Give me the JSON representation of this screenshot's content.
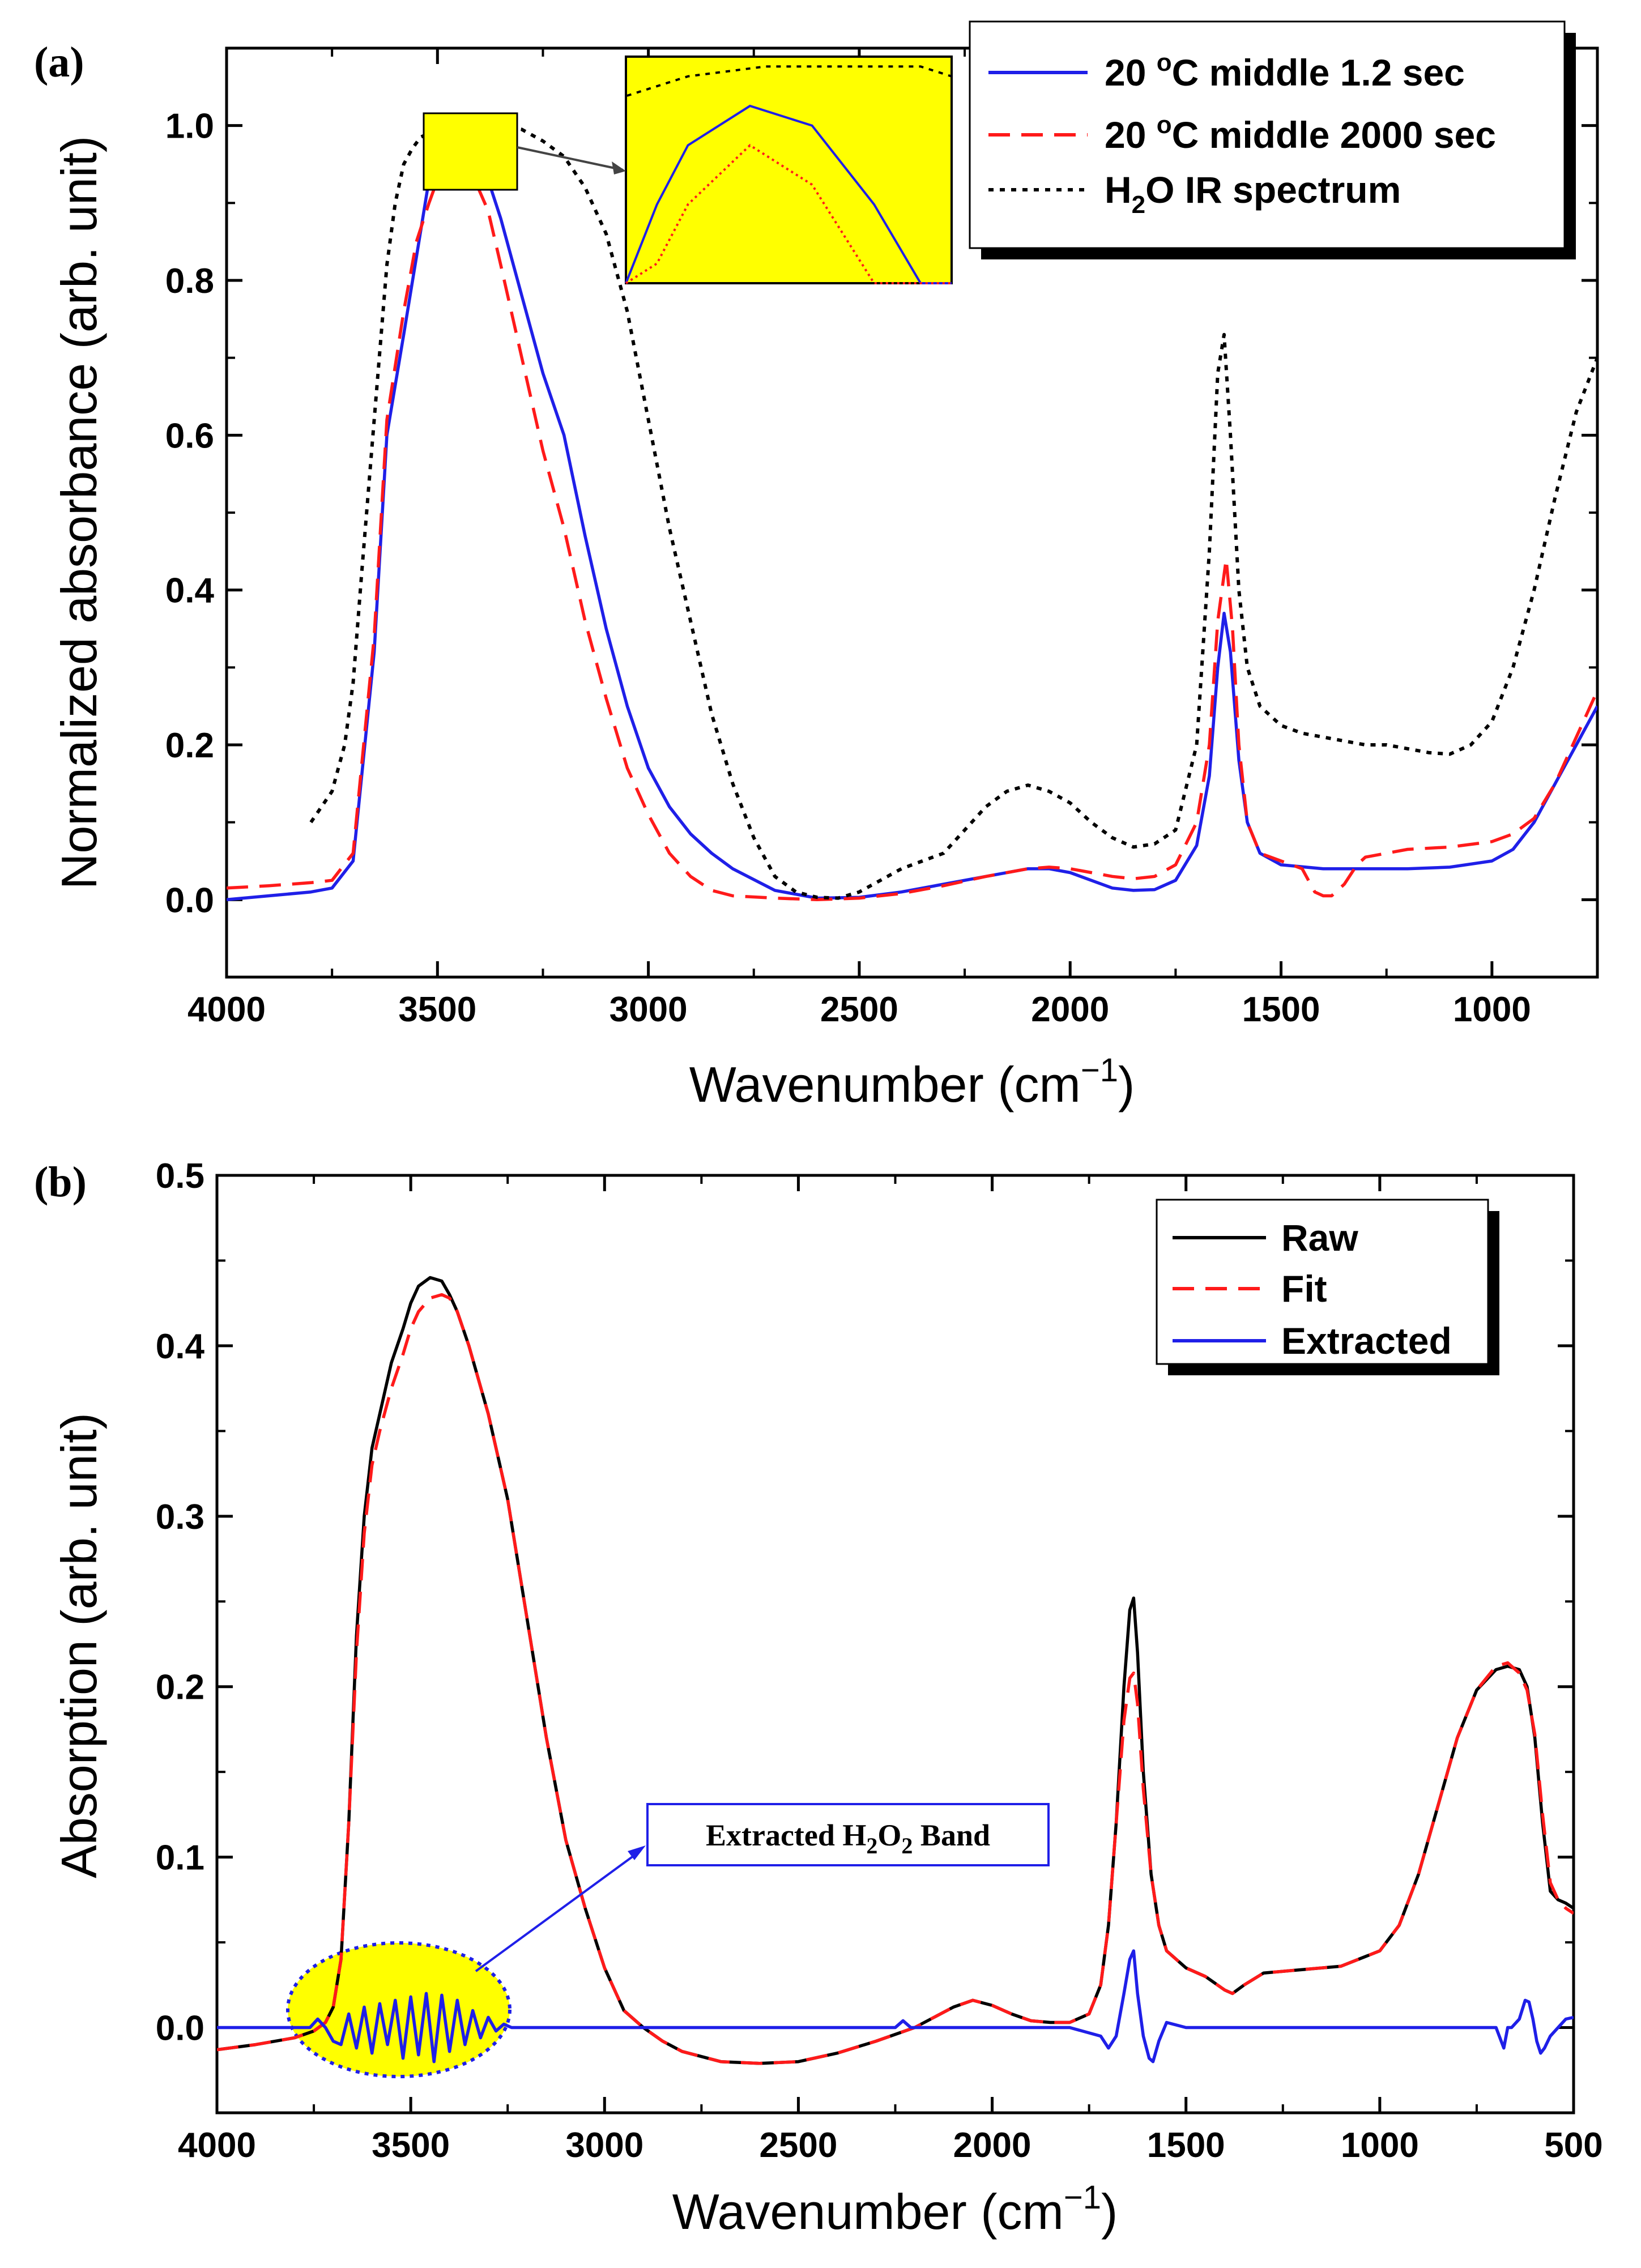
{
  "chart_data": [
    {
      "id": "a",
      "type": "line",
      "panel_label": "(a)",
      "xlabel": "Wavenumber (cm",
      "xlabel_sup": "−1",
      "xlabel_close": ")",
      "ylabel": "Normalized absorbance (arb. unit)",
      "xlim": [
        4000,
        750
      ],
      "ylim": [
        -0.1,
        1.1
      ],
      "xticks": [
        4000,
        3500,
        3000,
        2500,
        2000,
        1500,
        1000
      ],
      "yticks": [
        0.0,
        0.2,
        0.4,
        0.6,
        0.8,
        1.0
      ],
      "legend_position": "top-right",
      "legend": [
        {
          "pre": "20 ",
          "sup": "o",
          "post": "C middle 1.2 sec"
        },
        {
          "pre": "20 ",
          "sup": "o",
          "post": "C middle 2000 sec"
        },
        {
          "pre": "H",
          "sub": "2",
          "post": "O IR spectrum"
        }
      ],
      "inset": {
        "x_range": [
          3540,
          3330
        ],
        "y_range": [
          0.91,
          1.0
        ],
        "note": "magnified view of boxed peak region"
      },
      "series": [
        {
          "name": "20 °C middle 1.2 sec",
          "color": "#1f1fe8",
          "dash": "solid",
          "x": [
            4000,
            3900,
            3800,
            3750,
            3700,
            3650,
            3620,
            3580,
            3550,
            3520,
            3500,
            3460,
            3420,
            3380,
            3350,
            3300,
            3250,
            3200,
            3150,
            3100,
            3050,
            3000,
            2950,
            2900,
            2850,
            2800,
            2700,
            2600,
            2500,
            2400,
            2300,
            2200,
            2100,
            2050,
            2000,
            1950,
            1900,
            1850,
            1800,
            1750,
            1700,
            1670,
            1650,
            1635,
            1620,
            1600,
            1580,
            1550,
            1500,
            1400,
            1300,
            1200,
            1100,
            1000,
            950,
            900,
            850,
            800,
            750
          ],
          "y": [
            0.0,
            0.005,
            0.01,
            0.015,
            0.05,
            0.32,
            0.6,
            0.73,
            0.83,
            0.93,
            0.96,
            0.98,
            0.97,
            0.93,
            0.88,
            0.78,
            0.68,
            0.6,
            0.47,
            0.35,
            0.25,
            0.17,
            0.12,
            0.085,
            0.06,
            0.04,
            0.012,
            0.002,
            0.003,
            0.01,
            0.02,
            0.03,
            0.04,
            0.04,
            0.035,
            0.025,
            0.015,
            0.012,
            0.013,
            0.025,
            0.07,
            0.16,
            0.3,
            0.37,
            0.32,
            0.18,
            0.1,
            0.06,
            0.045,
            0.04,
            0.04,
            0.04,
            0.042,
            0.05,
            0.065,
            0.1,
            0.15,
            0.2,
            0.25
          ]
        },
        {
          "name": "20 °C middle 2000 sec",
          "color": "#ff1a1a",
          "dash": "long",
          "x": [
            4000,
            3900,
            3800,
            3750,
            3700,
            3650,
            3620,
            3580,
            3550,
            3520,
            3500,
            3460,
            3420,
            3380,
            3350,
            3300,
            3250,
            3200,
            3150,
            3100,
            3050,
            3000,
            2950,
            2900,
            2850,
            2800,
            2700,
            2600,
            2500,
            2400,
            2300,
            2200,
            2100,
            2050,
            2000,
            1950,
            1900,
            1850,
            1800,
            1750,
            1700,
            1670,
            1650,
            1630,
            1615,
            1600,
            1580,
            1550,
            1500,
            1450,
            1420,
            1400,
            1380,
            1350,
            1320,
            1300,
            1200,
            1100,
            1000,
            950,
            900,
            850,
            800,
            750
          ],
          "y": [
            0.015,
            0.018,
            0.022,
            0.025,
            0.06,
            0.34,
            0.62,
            0.76,
            0.85,
            0.9,
            0.93,
            0.96,
            0.94,
            0.89,
            0.82,
            0.7,
            0.58,
            0.48,
            0.36,
            0.26,
            0.17,
            0.11,
            0.06,
            0.03,
            0.012,
            0.005,
            0.002,
            0.0,
            0.002,
            0.008,
            0.018,
            0.03,
            0.04,
            0.042,
            0.04,
            0.035,
            0.03,
            0.027,
            0.03,
            0.045,
            0.1,
            0.2,
            0.36,
            0.44,
            0.35,
            0.2,
            0.1,
            0.06,
            0.05,
            0.04,
            0.01,
            0.005,
            0.005,
            0.02,
            0.045,
            0.055,
            0.065,
            0.068,
            0.075,
            0.085,
            0.105,
            0.15,
            0.21,
            0.27
          ]
        },
        {
          "name": "H2O IR spectrum",
          "color": "#000000",
          "dash": "dot",
          "x": [
            3800,
            3750,
            3720,
            3700,
            3680,
            3650,
            3620,
            3600,
            3580,
            3560,
            3540,
            3500,
            3450,
            3400,
            3350,
            3300,
            3250,
            3200,
            3150,
            3100,
            3050,
            3000,
            2950,
            2900,
            2850,
            2800,
            2750,
            2700,
            2650,
            2600,
            2550,
            2500,
            2450,
            2400,
            2350,
            2300,
            2250,
            2200,
            2150,
            2100,
            2050,
            2000,
            1950,
            1900,
            1850,
            1800,
            1750,
            1700,
            1670,
            1650,
            1635,
            1620,
            1600,
            1580,
            1550,
            1500,
            1450,
            1400,
            1350,
            1300,
            1250,
            1200,
            1150,
            1100,
            1050,
            1000,
            950,
            900,
            850,
            800,
            750
          ],
          "y": [
            0.1,
            0.14,
            0.2,
            0.28,
            0.42,
            0.62,
            0.82,
            0.9,
            0.95,
            0.97,
            0.985,
            0.995,
            1.0,
            1.0,
            1.0,
            0.995,
            0.98,
            0.96,
            0.92,
            0.86,
            0.76,
            0.62,
            0.48,
            0.36,
            0.24,
            0.15,
            0.08,
            0.03,
            0.01,
            0.003,
            0.002,
            0.01,
            0.025,
            0.04,
            0.05,
            0.06,
            0.09,
            0.12,
            0.14,
            0.148,
            0.14,
            0.125,
            0.1,
            0.08,
            0.068,
            0.072,
            0.09,
            0.2,
            0.45,
            0.68,
            0.73,
            0.6,
            0.4,
            0.3,
            0.25,
            0.225,
            0.215,
            0.21,
            0.205,
            0.2,
            0.2,
            0.195,
            0.19,
            0.188,
            0.2,
            0.23,
            0.3,
            0.4,
            0.52,
            0.63,
            0.7
          ]
        }
      ]
    },
    {
      "id": "b",
      "type": "line",
      "panel_label": "(b)",
      "xlabel": "Wavenumber (cm",
      "xlabel_sup": "−1",
      "xlabel_close": ")",
      "ylabel": "Absorption (arb. unit)",
      "xlim": [
        4000,
        500
      ],
      "ylim": [
        -0.05,
        0.5
      ],
      "xticks": [
        4000,
        3500,
        3000,
        2500,
        2000,
        1500,
        1000,
        500
      ],
      "yticks": [
        0.0,
        0.1,
        0.2,
        0.3,
        0.4,
        0.5
      ],
      "legend_position": "top-right",
      "legend": [
        {
          "post": "Raw"
        },
        {
          "post": "Fit"
        },
        {
          "post": "Extracted"
        }
      ],
      "annotation": {
        "pre": "Extracted H",
        "sub1": "2",
        "mid": "O",
        "sub2": "2",
        "post": " Band",
        "highlight_x_range": [
          3800,
          3250
        ]
      },
      "series": [
        {
          "name": "Raw",
          "color": "#000000",
          "dash": "solid",
          "x": [
            4000,
            3900,
            3800,
            3750,
            3720,
            3700,
            3680,
            3660,
            3640,
            3620,
            3600,
            3580,
            3550,
            3520,
            3500,
            3480,
            3450,
            3420,
            3400,
            3380,
            3350,
            3300,
            3250,
            3200,
            3150,
            3100,
            3050,
            3000,
            2950,
            2900,
            2850,
            2800,
            2700,
            2600,
            2500,
            2400,
            2300,
            2200,
            2100,
            2050,
            2000,
            1950,
            1900,
            1850,
            1800,
            1750,
            1720,
            1700,
            1680,
            1660,
            1645,
            1635,
            1625,
            1610,
            1590,
            1570,
            1550,
            1500,
            1450,
            1400,
            1380,
            1350,
            1300,
            1250,
            1200,
            1100,
            1000,
            950,
            900,
            850,
            800,
            750,
            700,
            670,
            640,
            620,
            600,
            580,
            560,
            540,
            520,
            500
          ],
          "y": [
            -0.013,
            -0.01,
            -0.006,
            -0.002,
            0.003,
            0.012,
            0.04,
            0.12,
            0.23,
            0.3,
            0.34,
            0.36,
            0.39,
            0.41,
            0.425,
            0.435,
            0.44,
            0.438,
            0.43,
            0.42,
            0.4,
            0.36,
            0.31,
            0.24,
            0.17,
            0.11,
            0.07,
            0.035,
            0.01,
            0.0,
            -0.008,
            -0.014,
            -0.02,
            -0.021,
            -0.02,
            -0.015,
            -0.008,
            0.0,
            0.012,
            0.016,
            0.013,
            0.008,
            0.004,
            0.003,
            0.003,
            0.008,
            0.025,
            0.06,
            0.12,
            0.2,
            0.245,
            0.252,
            0.22,
            0.15,
            0.09,
            0.06,
            0.045,
            0.035,
            0.03,
            0.022,
            0.02,
            0.025,
            0.032,
            0.033,
            0.034,
            0.036,
            0.045,
            0.06,
            0.09,
            0.13,
            0.17,
            0.198,
            0.21,
            0.212,
            0.21,
            0.2,
            0.17,
            0.12,
            0.08,
            0.075,
            0.073,
            0.07
          ]
        },
        {
          "name": "Fit",
          "color": "#ff1a1a",
          "dash": "long",
          "x": [
            4000,
            3900,
            3800,
            3750,
            3720,
            3700,
            3680,
            3660,
            3640,
            3620,
            3600,
            3580,
            3550,
            3520,
            3500,
            3480,
            3450,
            3420,
            3400,
            3380,
            3350,
            3300,
            3250,
            3200,
            3150,
            3100,
            3050,
            3000,
            2950,
            2900,
            2850,
            2800,
            2700,
            2600,
            2500,
            2400,
            2300,
            2200,
            2100,
            2050,
            2000,
            1950,
            1900,
            1850,
            1800,
            1750,
            1720,
            1700,
            1680,
            1660,
            1645,
            1635,
            1625,
            1610,
            1590,
            1570,
            1550,
            1500,
            1450,
            1400,
            1380,
            1350,
            1300,
            1250,
            1200,
            1100,
            1000,
            950,
            900,
            850,
            800,
            750,
            700,
            670,
            640,
            620,
            600,
            580,
            560,
            540,
            520,
            500
          ],
          "y": [
            -0.013,
            -0.01,
            -0.006,
            -0.002,
            0.003,
            0.012,
            0.04,
            0.12,
            0.22,
            0.29,
            0.33,
            0.35,
            0.375,
            0.395,
            0.41,
            0.42,
            0.428,
            0.43,
            0.428,
            0.42,
            0.4,
            0.36,
            0.31,
            0.24,
            0.17,
            0.11,
            0.07,
            0.035,
            0.01,
            0.0,
            -0.008,
            -0.014,
            -0.02,
            -0.021,
            -0.02,
            -0.015,
            -0.008,
            0.0,
            0.012,
            0.016,
            0.013,
            0.008,
            0.004,
            0.003,
            0.003,
            0.008,
            0.025,
            0.06,
            0.12,
            0.18,
            0.205,
            0.208,
            0.19,
            0.14,
            0.09,
            0.06,
            0.045,
            0.035,
            0.03,
            0.022,
            0.02,
            0.025,
            0.032,
            0.033,
            0.034,
            0.036,
            0.045,
            0.06,
            0.09,
            0.13,
            0.17,
            0.198,
            0.212,
            0.214,
            0.208,
            0.198,
            0.172,
            0.125,
            0.085,
            0.075,
            0.07,
            0.067
          ]
        },
        {
          "name": "Extracted",
          "color": "#1f1fe8",
          "dash": "solid",
          "x": [
            4000,
            3900,
            3800,
            3760,
            3740,
            3720,
            3700,
            3680,
            3660,
            3640,
            3620,
            3600,
            3580,
            3560,
            3540,
            3520,
            3500,
            3480,
            3460,
            3440,
            3420,
            3400,
            3380,
            3360,
            3340,
            3320,
            3300,
            3280,
            3260,
            3240,
            3200,
            3100,
            3000,
            2500,
            2250,
            2230,
            2210,
            2000,
            1800,
            1720,
            1700,
            1680,
            1660,
            1645,
            1635,
            1625,
            1610,
            1595,
            1585,
            1570,
            1550,
            1500,
            1000,
            700,
            680,
            670,
            660,
            640,
            625,
            615,
            605,
            595,
            585,
            575,
            560,
            540,
            520,
            500
          ],
          "y": [
            0.0,
            0.0,
            0.0,
            0.0,
            0.005,
            0.0,
            -0.008,
            -0.01,
            0.008,
            -0.012,
            0.012,
            -0.015,
            0.014,
            -0.01,
            0.016,
            -0.018,
            0.018,
            -0.016,
            0.02,
            -0.02,
            0.019,
            -0.014,
            0.016,
            -0.01,
            0.01,
            -0.006,
            0.006,
            -0.002,
            0.002,
            0.0,
            0.0,
            0.0,
            0.0,
            0.0,
            0.0,
            0.004,
            0.0,
            0.0,
            0.0,
            -0.005,
            -0.012,
            -0.005,
            0.02,
            0.04,
            0.045,
            0.02,
            -0.005,
            -0.018,
            -0.02,
            -0.008,
            0.003,
            0.0,
            0.0,
            0.0,
            -0.012,
            0.0,
            0.0,
            0.005,
            0.016,
            0.015,
            0.005,
            -0.008,
            -0.015,
            -0.012,
            -0.005,
            0.0,
            0.005,
            0.006
          ]
        }
      ]
    }
  ]
}
